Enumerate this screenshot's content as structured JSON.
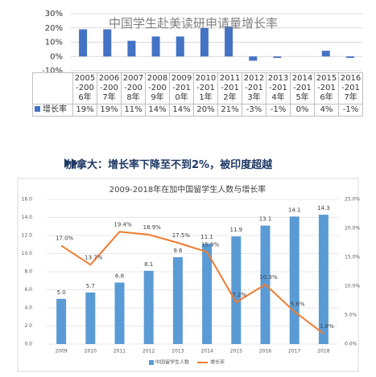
{
  "chart_data": [
    {
      "type": "bar",
      "title": "中国学生赴美读研申请量增长率",
      "categories": [
        "2005-2006年",
        "2006-2007年",
        "2007-2008年",
        "2008-2009年",
        "2009-2010年",
        "2010-2011年",
        "2011-2012年",
        "2012-2013年",
        "2013-2014年",
        "2014-2015年",
        "2015-2016年",
        "2016-2017年"
      ],
      "series": [
        {
          "name": "增长率",
          "color": "#4472c4",
          "values": [
            19,
            19,
            11,
            14,
            14,
            20,
            21,
            -3,
            -1,
            0,
            4,
            -1
          ],
          "value_labels": [
            "19%",
            "19%",
            "11%",
            "14%",
            "14%",
            "20%",
            "21%",
            "-3%",
            "-1%",
            "0%",
            "4%",
            "-1%"
          ]
        }
      ],
      "ylim": [
        -10,
        30
      ],
      "yticks": [
        {
          "value": -10,
          "label": "-10%"
        },
        {
          "value": 0,
          "label": "0%"
        },
        {
          "value": 10,
          "label": "10%"
        },
        {
          "value": 20,
          "label": "20%"
        },
        {
          "value": 30,
          "label": "30%"
        }
      ],
      "grid": true
    },
    {
      "type": "bar-line",
      "title": "2009-2018年在加中国留学生人数与增长率",
      "categories": [
        "2009",
        "2010",
        "2011",
        "2012",
        "2013",
        "2014",
        "2015",
        "2016",
        "2017",
        "2018"
      ],
      "series": [
        {
          "name": "中国留学生人数",
          "color": "#5b9bd5",
          "values": [
            5.0,
            5.7,
            6.8,
            8.1,
            9.6,
            11.1,
            11.9,
            13.1,
            14.1,
            14.3
          ],
          "value_labels": [
            "5.0",
            "5.7",
            "6.8",
            "8.1",
            "9.6",
            "11.1",
            "11.9",
            "13.1",
            "14.1",
            "14.3"
          ]
        },
        {
          "name": "增长率",
          "color": "#ed7d31",
          "axis": "y2",
          "values": [
            17.0,
            13.7,
            19.4,
            18.9,
            17.5,
            15.9,
            7.2,
            10.3,
            5.6,
            1.8
          ],
          "value_labels": [
            "17.0%",
            "13.7%",
            "19.4%",
            "18.9%",
            "17.5%",
            "15.9%",
            "7.2%",
            "10.3%",
            "5.6%",
            "1.8%"
          ]
        }
      ],
      "ylim": [
        0,
        16
      ],
      "yticks": [
        {
          "value": 0,
          "label": "0.0"
        },
        {
          "value": 2,
          "label": "2.0"
        },
        {
          "value": 4,
          "label": "4.0"
        },
        {
          "value": 6,
          "label": "6.0"
        },
        {
          "value": 8,
          "label": "8.0"
        },
        {
          "value": 10,
          "label": "10.0"
        },
        {
          "value": 12,
          "label": "12.0"
        },
        {
          "value": 14,
          "label": "14.0"
        },
        {
          "value": 16,
          "label": "16.0"
        }
      ],
      "y2lim": [
        0,
        25
      ],
      "y2ticks": [
        {
          "value": 0,
          "label": "0.0%"
        },
        {
          "value": 5,
          "label": "5.0%"
        },
        {
          "value": 10,
          "label": "10.0%"
        },
        {
          "value": 15,
          "label": "15.0%"
        },
        {
          "value": 20,
          "label": "20.0%"
        },
        {
          "value": 25,
          "label": "25.0%"
        }
      ],
      "grid": true,
      "legend": "bottom"
    }
  ],
  "heading": "加拿大：增长率下降至不到2%，被印度超越"
}
